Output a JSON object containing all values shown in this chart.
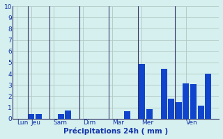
{
  "values": [
    0,
    0,
    0.45,
    0.45,
    0,
    0,
    0.4,
    0.75,
    0,
    0,
    0,
    0,
    0,
    0,
    0,
    0.65,
    0,
    4.85,
    0.85,
    0,
    4.45,
    1.8,
    1.5,
    3.15,
    3.1,
    1.15,
    4.0,
    0
  ],
  "bar_color": "#1144cc",
  "background_color": "#d5f0ee",
  "grid_color": "#b0c8c4",
  "axis_color": "#333366",
  "text_color": "#1133aa",
  "xlabel": "Précipitations 24h ( mm )",
  "ylim": [
    0,
    10
  ],
  "yticks": [
    0,
    1,
    2,
    3,
    4,
    5,
    6,
    7,
    8,
    9,
    10
  ],
  "day_labels": [
    "Lun",
    "Jeu",
    "Sam",
    "Dim",
    "Mar",
    "Mer",
    "Ven"
  ],
  "day_tick_positions": [
    0,
    2,
    5,
    9,
    13,
    17,
    23
  ],
  "separator_positions": [
    1.5,
    4.5,
    8.5,
    12.5,
    16.5,
    21.5
  ],
  "n_bars": 28
}
